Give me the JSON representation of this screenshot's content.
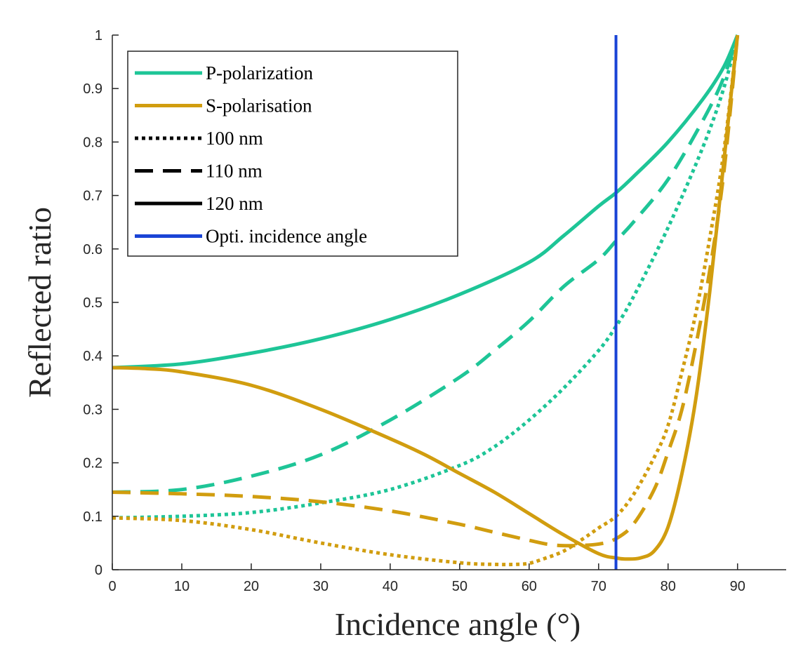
{
  "chart_data": {
    "type": "line",
    "xlabel": "Incidence angle (°)",
    "ylabel": "Reflected ratio",
    "xlim": [
      0,
      97
    ],
    "ylim": [
      0,
      1
    ],
    "xticks": [
      "0",
      "10",
      "20",
      "30",
      "40",
      "50",
      "60",
      "70",
      "80",
      "90"
    ],
    "yticks": [
      "0",
      "0.1",
      "0.2",
      "0.3",
      "0.4",
      "0.5",
      "0.6",
      "0.7",
      "0.8",
      "0.9",
      "1"
    ],
    "grid": false,
    "legend_position": "top-left",
    "legend": [
      {
        "label": "P-polarization",
        "color": "#1ec597",
        "style": "solid"
      },
      {
        "label": "S-polarisation",
        "color": "#d19d0f",
        "style": "solid"
      },
      {
        "label": "100 nm",
        "color": "#000000",
        "style": "dotted"
      },
      {
        "label": "110 nm",
        "color": "#000000",
        "style": "dashed"
      },
      {
        "label": "120 nm",
        "color": "#000000",
        "style": "solid"
      },
      {
        "label": "Opti. incidence angle",
        "color": "#1a44d6",
        "style": "solid"
      }
    ],
    "vline": {
      "name": "Opti. incidence angle",
      "x": 72.5,
      "color": "#1a44d6"
    },
    "series": [
      {
        "polarization": "P",
        "thickness": "120 nm",
        "style": "solid",
        "color": "#1ec597",
        "x": [
          0,
          10,
          20,
          30,
          40,
          50,
          60,
          65,
          70,
          72.5,
          75,
          80,
          85,
          88,
          90
        ],
        "y": [
          0.378,
          0.385,
          0.405,
          0.432,
          0.468,
          0.515,
          0.575,
          0.625,
          0.68,
          0.705,
          0.735,
          0.8,
          0.88,
          0.94,
          1.0
        ]
      },
      {
        "polarization": "P",
        "thickness": "110 nm",
        "style": "dashed",
        "color": "#1ec597",
        "x": [
          0,
          10,
          20,
          30,
          40,
          50,
          55,
          60,
          65,
          70,
          72.5,
          75,
          80,
          85,
          88,
          90
        ],
        "y": [
          0.145,
          0.15,
          0.175,
          0.215,
          0.28,
          0.36,
          0.41,
          0.465,
          0.53,
          0.58,
          0.615,
          0.65,
          0.73,
          0.84,
          0.92,
          1.0
        ]
      },
      {
        "polarization": "P",
        "thickness": "100 nm",
        "style": "dotted",
        "color": "#1ec597",
        "x": [
          0,
          10,
          20,
          30,
          40,
          50,
          55,
          60,
          65,
          70,
          72.5,
          75,
          80,
          85,
          88,
          90
        ],
        "y": [
          0.097,
          0.1,
          0.107,
          0.125,
          0.15,
          0.195,
          0.23,
          0.28,
          0.34,
          0.41,
          0.455,
          0.51,
          0.64,
          0.79,
          0.9,
          1.0
        ]
      },
      {
        "polarization": "S",
        "thickness": "120 nm",
        "style": "solid",
        "color": "#d19d0f",
        "x": [
          0,
          5,
          10,
          20,
          30,
          40,
          45,
          50,
          55,
          60,
          65,
          70,
          72.5,
          74,
          76,
          78,
          80,
          82,
          84,
          86,
          88,
          90
        ],
        "y": [
          0.378,
          0.376,
          0.37,
          0.345,
          0.3,
          0.245,
          0.215,
          0.18,
          0.145,
          0.105,
          0.065,
          0.03,
          0.022,
          0.02,
          0.022,
          0.035,
          0.08,
          0.18,
          0.32,
          0.52,
          0.76,
          1.0
        ]
      },
      {
        "polarization": "S",
        "thickness": "110 nm",
        "style": "dashed",
        "color": "#d19d0f",
        "x": [
          0,
          10,
          20,
          30,
          40,
          50,
          55,
          60,
          63,
          66,
          70,
          72.5,
          75,
          78,
          80,
          82,
          84,
          86,
          88,
          90
        ],
        "y": [
          0.145,
          0.142,
          0.137,
          0.127,
          0.11,
          0.085,
          0.07,
          0.055,
          0.047,
          0.045,
          0.048,
          0.058,
          0.085,
          0.15,
          0.22,
          0.3,
          0.42,
          0.56,
          0.74,
          1.0
        ]
      },
      {
        "polarization": "S",
        "thickness": "100 nm",
        "style": "dotted",
        "color": "#d19d0f",
        "x": [
          0,
          10,
          20,
          30,
          40,
          50,
          55,
          58,
          60,
          62,
          65,
          68,
          70,
          72.5,
          75,
          78,
          80,
          82,
          84,
          86,
          88,
          90
        ],
        "y": [
          0.097,
          0.092,
          0.075,
          0.05,
          0.028,
          0.013,
          0.01,
          0.01,
          0.012,
          0.02,
          0.035,
          0.06,
          0.078,
          0.1,
          0.14,
          0.21,
          0.27,
          0.37,
          0.48,
          0.62,
          0.78,
          1.0
        ]
      }
    ]
  }
}
